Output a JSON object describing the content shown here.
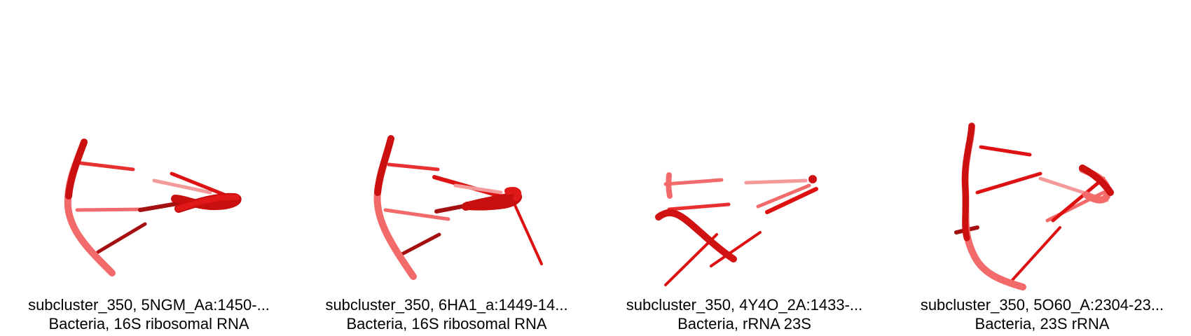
{
  "panels": [
    {
      "id": "subcluster_350, 5NGM_Aa:1450-...",
      "organism": "Bacteria, 16S ribosomal RNA"
    },
    {
      "id": "subcluster_350, 6HA1_a:1449-14...",
      "organism": "Bacteria, 16S ribosomal RNA"
    },
    {
      "id": "subcluster_350, 4Y4O_2A:1433-...",
      "organism": "Bacteria, rRNA 23S"
    },
    {
      "id": "subcluster_350, 5O60_A:2304-23...",
      "organism": "Bacteria, 23S rRNA"
    }
  ],
  "colors": {
    "backbone": "#dd1111",
    "backbone_light": "#f26a6a",
    "base": "#e83030",
    "base_dark": "#a40f0f",
    "caption_text": "#000000"
  }
}
